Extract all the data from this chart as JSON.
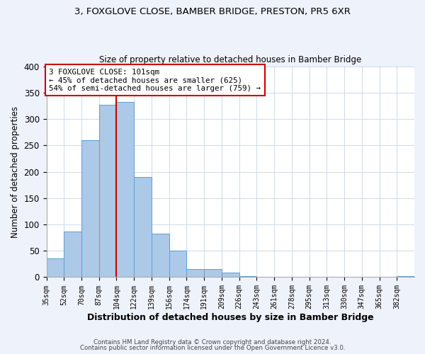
{
  "title1": "3, FOXGLOVE CLOSE, BAMBER BRIDGE, PRESTON, PR5 6XR",
  "title2": "Size of property relative to detached houses in Bamber Bridge",
  "xlabel": "Distribution of detached houses by size in Bamber Bridge",
  "ylabel": "Number of detached properties",
  "bin_labels": [
    "35sqm",
    "52sqm",
    "70sqm",
    "87sqm",
    "104sqm",
    "122sqm",
    "139sqm",
    "156sqm",
    "174sqm",
    "191sqm",
    "209sqm",
    "226sqm",
    "243sqm",
    "261sqm",
    "278sqm",
    "295sqm",
    "313sqm",
    "330sqm",
    "347sqm",
    "365sqm",
    "382sqm"
  ],
  "bar_values": [
    35,
    87,
    260,
    327,
    332,
    190,
    82,
    50,
    15,
    15,
    9,
    2,
    0,
    0,
    0,
    0,
    0,
    0,
    0,
    0,
    2
  ],
  "bar_color": "#adc9e8",
  "bar_edge_color": "#5a9fd4",
  "vline_color": "#cc0000",
  "annotation_title": "3 FOXGLOVE CLOSE: 101sqm",
  "annotation_line1": "← 45% of detached houses are smaller (625)",
  "annotation_line2": "54% of semi-detached houses are larger (759) →",
  "annotation_box_color": "#ffffff",
  "annotation_box_edge": "#cc0000",
  "footer1": "Contains HM Land Registry data © Crown copyright and database right 2024.",
  "footer2": "Contains public sector information licensed under the Open Government Licence v3.0.",
  "ylim": [
    0,
    400
  ],
  "yticks": [
    0,
    50,
    100,
    150,
    200,
    250,
    300,
    350,
    400
  ],
  "bg_color": "#eef2fb",
  "plot_bg": "#ffffff",
  "grid_color": "#c8d4e8"
}
